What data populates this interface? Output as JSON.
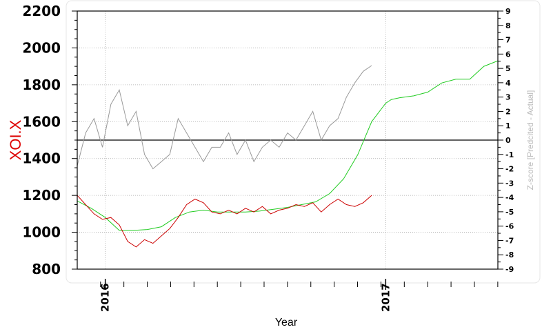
{
  "chart_data": {
    "type": "line",
    "xlabel": "Year",
    "ylabel_left": "XOI.X",
    "ylabel_right": "Z-score [Predcited - Actual]",
    "x_ticks": [
      "2016",
      "2017"
    ],
    "y_left": {
      "ticks": [
        800,
        1000,
        1200,
        1400,
        1600,
        1800,
        2000,
        2200
      ],
      "range": [
        800,
        2200
      ]
    },
    "y_right": {
      "ticks": [
        -9,
        -8,
        -7,
        -6,
        -5,
        -4,
        -3,
        -2,
        -1,
        0,
        1,
        2,
        3,
        4,
        5,
        6,
        7,
        8,
        9
      ],
      "range": [
        -9,
        9
      ]
    },
    "x_range": [
      2015.9,
      2017.4
    ],
    "grid": true,
    "zero_line": 0,
    "colors": {
      "actual": "#cc0000",
      "predicted": "#22cc22",
      "zscore": "#999999",
      "left_label": "#dd0000",
      "right_label": "#bbbbbb"
    },
    "series": [
      {
        "role": "actual",
        "axis": "left",
        "x": [
          2015.9,
          2015.93,
          2015.96,
          2015.99,
          2016.02,
          2016.05,
          2016.08,
          2016.11,
          2016.14,
          2016.17,
          2016.2,
          2016.23,
          2016.26,
          2016.29,
          2016.32,
          2016.35,
          2016.38,
          2016.41,
          2016.44,
          2016.47,
          2016.5,
          2016.53,
          2016.56,
          2016.59,
          2016.62,
          2016.65,
          2016.68,
          2016.71,
          2016.74,
          2016.77,
          2016.8,
          2016.83,
          2016.86,
          2016.89,
          2016.92,
          2016.95
        ],
        "y": [
          1200,
          1150,
          1100,
          1070,
          1080,
          1040,
          950,
          920,
          960,
          940,
          980,
          1020,
          1080,
          1150,
          1180,
          1160,
          1110,
          1100,
          1120,
          1100,
          1130,
          1110,
          1140,
          1100,
          1120,
          1130,
          1150,
          1140,
          1160,
          1110,
          1150,
          1180,
          1150,
          1140,
          1160,
          1200
        ]
      },
      {
        "role": "predicted",
        "axis": "left",
        "x": [
          2015.9,
          2015.95,
          2016.0,
          2016.05,
          2016.1,
          2016.15,
          2016.2,
          2016.25,
          2016.3,
          2016.35,
          2016.4,
          2016.45,
          2016.5,
          2016.55,
          2016.6,
          2016.65,
          2016.7,
          2016.75,
          2016.8,
          2016.85,
          2016.9,
          2016.95,
          2017.0,
          2017.02,
          2017.05,
          2017.1,
          2017.15,
          2017.2,
          2017.25,
          2017.3,
          2017.35,
          2017.4
        ],
        "y": [
          1170,
          1130,
          1080,
          1010,
          1010,
          1015,
          1030,
          1080,
          1110,
          1120,
          1110,
          1110,
          1110,
          1115,
          1125,
          1135,
          1150,
          1165,
          1210,
          1290,
          1420,
          1600,
          1700,
          1720,
          1730,
          1740,
          1760,
          1810,
          1830,
          1830,
          1900,
          1930
        ]
      },
      {
        "role": "zscore",
        "axis": "right",
        "x": [
          2015.9,
          2015.93,
          2015.96,
          2015.99,
          2016.02,
          2016.05,
          2016.08,
          2016.11,
          2016.14,
          2016.17,
          2016.2,
          2016.23,
          2016.26,
          2016.29,
          2016.32,
          2016.35,
          2016.38,
          2016.41,
          2016.44,
          2016.47,
          2016.5,
          2016.53,
          2016.56,
          2016.59,
          2016.62,
          2016.65,
          2016.68,
          2016.71,
          2016.74,
          2016.77,
          2016.8,
          2016.83,
          2016.86,
          2016.89,
          2016.92,
          2016.95
        ],
        "y": [
          -1.8,
          0.5,
          1.5,
          -0.5,
          2.5,
          3.5,
          1.0,
          2.0,
          -1.0,
          -2.0,
          -1.5,
          -1.0,
          1.5,
          0.5,
          -0.5,
          -1.5,
          -0.5,
          -0.5,
          0.5,
          -1.0,
          0.0,
          -1.5,
          -0.5,
          0.0,
          -0.5,
          0.5,
          0.0,
          1.0,
          2.0,
          0.0,
          1.0,
          1.5,
          3.0,
          4.0,
          4.8,
          5.2
        ]
      }
    ]
  }
}
